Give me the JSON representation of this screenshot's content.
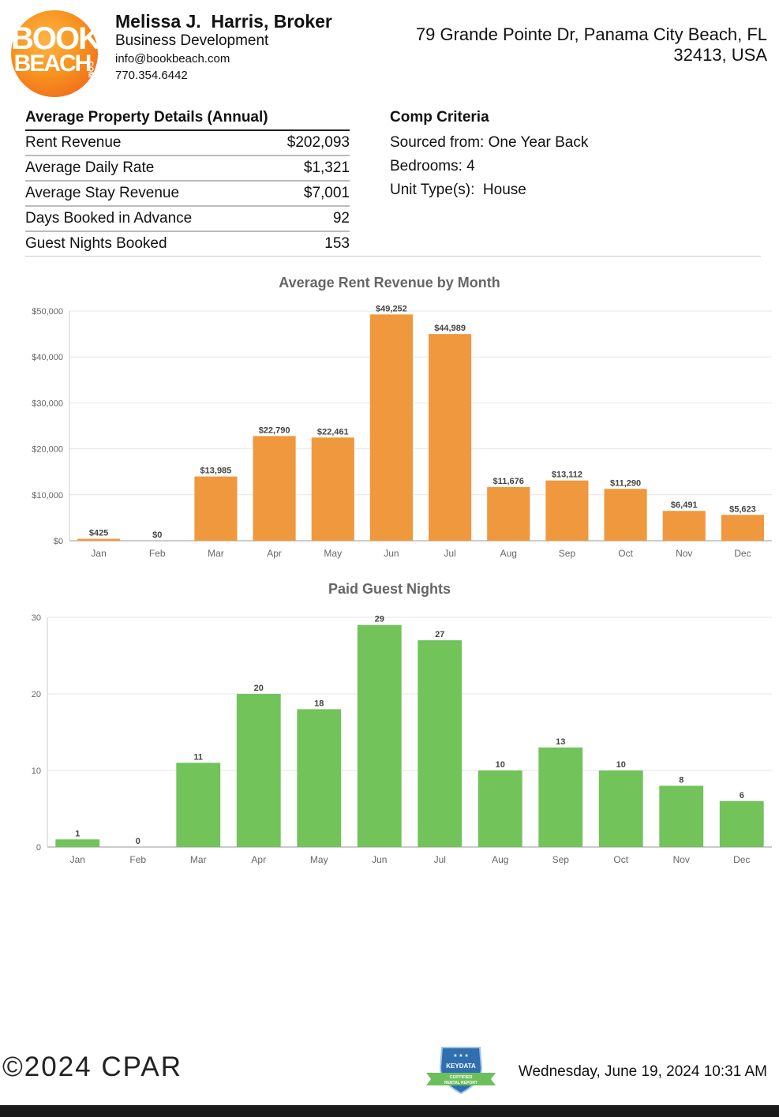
{
  "header": {
    "logo": {
      "line1": "BOOK",
      "line2": "BEACH",
      "suffix": ".COM"
    },
    "agent_name": "Melissa J.  Harris, Broker",
    "agent_role": "Business Development",
    "agent_email": "info@bookbeach.com",
    "agent_phone": "770.354.6442",
    "address_line1": "79 Grande Pointe Dr, Panama City Beach, FL",
    "address_line2": "32413, USA"
  },
  "property_details": {
    "title": "Average Property Details (Annual)",
    "rows": [
      {
        "label": "Rent Revenue",
        "value": "$202,093"
      },
      {
        "label": "Average Daily Rate",
        "value": "$1,321"
      },
      {
        "label": "Average Stay Revenue",
        "value": "$7,001"
      },
      {
        "label": "Days Booked in Advance",
        "value": "92"
      },
      {
        "label": "Guest Nights Booked",
        "value": "153"
      }
    ]
  },
  "comp_criteria": {
    "title": "Comp Criteria",
    "lines": [
      "Sourced from: One Year Back",
      "Bedrooms: 4",
      "Unit Type(s):  House"
    ]
  },
  "chart_data": [
    {
      "type": "bar",
      "title": "Average Rent Revenue by Month",
      "categories": [
        "Jan",
        "Feb",
        "Mar",
        "Apr",
        "May",
        "Jun",
        "Jul",
        "Aug",
        "Sep",
        "Oct",
        "Nov",
        "Dec"
      ],
      "values": [
        425,
        0,
        13985,
        22790,
        22461,
        49252,
        44989,
        11676,
        13112,
        11290,
        6491,
        5623
      ],
      "value_labels": [
        "$425",
        "$0",
        "$13,985",
        "$22,790",
        "$22,461",
        "$49,252",
        "$44,989",
        "$11,676",
        "$13,112",
        "$11,290",
        "$6,491",
        "$5,623"
      ],
      "yticks": [
        0,
        10000,
        20000,
        30000,
        40000,
        50000
      ],
      "ytick_labels": [
        "$0",
        "$10,000",
        "$20,000",
        "$30,000",
        "$40,000",
        "$50,000"
      ],
      "ylim": [
        0,
        50000
      ],
      "color": "#f0983e",
      "grid": true
    },
    {
      "type": "bar",
      "title": "Paid Guest Nights",
      "categories": [
        "Jan",
        "Feb",
        "Mar",
        "Apr",
        "May",
        "Jun",
        "Jul",
        "Aug",
        "Sep",
        "Oct",
        "Nov",
        "Dec"
      ],
      "values": [
        1,
        0,
        11,
        20,
        18,
        29,
        27,
        10,
        13,
        10,
        8,
        6
      ],
      "value_labels": [
        "1",
        "0",
        "11",
        "20",
        "18",
        "29",
        "27",
        "10",
        "13",
        "10",
        "8",
        "6"
      ],
      "yticks": [
        0,
        10,
        20,
        30
      ],
      "ytick_labels": [
        "0",
        "10",
        "20",
        "30"
      ],
      "ylim": [
        0,
        30
      ],
      "color": "#72c35a",
      "grid": true
    }
  ],
  "footer": {
    "copyright": "©2024 CPAR",
    "badge": {
      "top": "KEYDATA",
      "line1": "CERTIFIED",
      "line2": "RENTAL REPORT"
    },
    "timestamp": "Wednesday, June 19, 2024 10:31 AM"
  }
}
